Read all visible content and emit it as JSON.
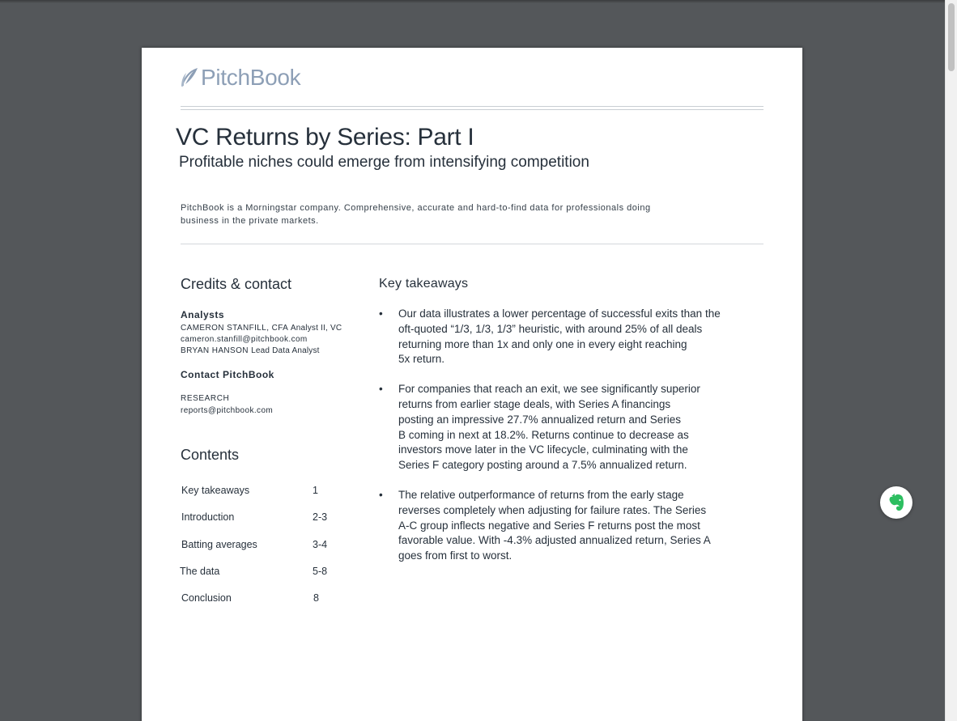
{
  "logo": {
    "text": "PitchBook"
  },
  "report": {
    "title": "VC Returns by Series: Part I",
    "subtitle": "Profitable niches could emerge from intensifying competition",
    "blurb_line1": "PitchBook is a Morningstar company. Comprehensive, accurate and hard-to-find data for professionals doing",
    "blurb_line2": "business in the private markets."
  },
  "credits": {
    "heading": "Credits & contact",
    "analysts_heading": "Analysts",
    "analyst1_name": "CAMERON STANFILL, CFA",
    "analyst1_role": "Analyst II, VC",
    "analyst1_email": "cameron.stanfill@pitchbook.com",
    "analyst2_name": "BRYAN HANSON",
    "analyst2_role": "Lead Data Analyst",
    "contact_heading": "Contact PitchBook",
    "research_label": "RESEARCH",
    "research_email": "reports@pitchbook.com"
  },
  "contents": {
    "heading": "Contents",
    "items": [
      {
        "label": "Key takeaways",
        "page": "1"
      },
      {
        "label": "Introduction",
        "page": "2-3"
      },
      {
        "label": "Batting averages",
        "page": "3-4"
      },
      {
        "label": "The data",
        "page": "5-8"
      },
      {
        "label": "Conclusion",
        "page": "8"
      }
    ]
  },
  "takeaways": {
    "heading": "Key takeaways",
    "bullet_symbol": "•",
    "items": [
      {
        "lines": [
          "Our data illustrates a lower percentage of successful exits than the",
          "oft-quoted “1/3, 1/3, 1/3” heuristic, with around 25% of all deals",
          "returning more than 1x and only one in every eight reaching",
          "5x return."
        ]
      },
      {
        "lines": [
          "For companies that reach an exit, we see significantly superior",
          "returns from earlier stage deals, with Series A financings",
          "posting an impressive 27.7% annualized return and Series",
          "B coming in next at 18.2%. Returns continue to decrease as",
          "investors move later in the VC lifecycle, culminating with the",
          "Series F category posting around a 7.5% annualized return."
        ]
      },
      {
        "lines": [
          "The relative outperformance of returns from the early stage",
          "reverses completely when adjusting for failure rates. The Series",
          "A-C group inflects negative and Series F returns post the most",
          "favorable value. With -4.3% adjusted annualized return, Series A",
          "goes from first to worst."
        ]
      }
    ]
  },
  "colors": {
    "logo": "#8d9fb6",
    "text": "#26303b",
    "viewer_bg": "#54575a",
    "evernote_green": "#2dbe60"
  },
  "icons": {
    "logo": "leaf-logo-icon",
    "extension": "evernote-elephant-icon"
  }
}
